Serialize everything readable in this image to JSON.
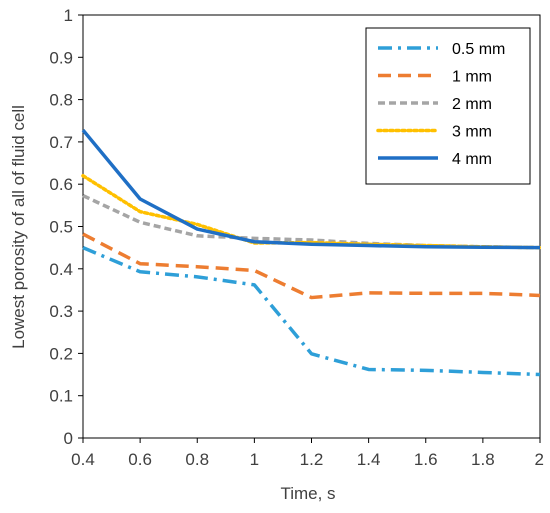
{
  "chart_data": {
    "type": "line",
    "title": "",
    "xlabel": "Time, s",
    "ylabel": "Lowest porosity of all of fluid cell",
    "xlim": [
      0.4,
      2
    ],
    "ylim": [
      0,
      1
    ],
    "xticks": [
      "0.4",
      "0.6",
      "0.8",
      "1",
      "1.2",
      "1.4",
      "1.6",
      "1.8",
      "2"
    ],
    "yticks": [
      "0",
      "0.1",
      "0.2",
      "0.3",
      "0.4",
      "0.5",
      "0.6",
      "0.7",
      "0.8",
      "0.9",
      "1"
    ],
    "grid": false,
    "legend_position": "top-right",
    "series": [
      {
        "name": "0.5 mm",
        "color": "#2E9FD8",
        "dash": "dash-dot",
        "x": [
          0.4,
          0.6,
          0.8,
          1.0,
          1.2,
          1.4,
          1.6,
          1.8,
          2.0
        ],
        "y": [
          0.45,
          0.393,
          0.381,
          0.362,
          0.199,
          0.162,
          0.16,
          0.155,
          0.15
        ]
      },
      {
        "name": "1 mm",
        "color": "#ED7D31",
        "dash": "dash",
        "x": [
          0.4,
          0.6,
          0.8,
          1.0,
          1.2,
          1.4,
          1.6,
          1.8,
          2.0
        ],
        "y": [
          0.482,
          0.412,
          0.405,
          0.396,
          0.332,
          0.343,
          0.342,
          0.342,
          0.337
        ]
      },
      {
        "name": "2 mm",
        "color": "#A5A5A5",
        "dash": "short-dash",
        "x": [
          0.4,
          0.6,
          0.8,
          1.0,
          1.2,
          1.4,
          1.6,
          1.8,
          2.0
        ],
        "y": [
          0.573,
          0.51,
          0.478,
          0.472,
          0.468,
          0.46,
          0.455,
          0.452,
          0.45
        ]
      },
      {
        "name": "3 mm",
        "color": "#FFC000",
        "dash": "dot",
        "x": [
          0.4,
          0.6,
          0.8,
          1.0,
          1.2,
          1.4,
          1.6,
          1.8,
          2.0
        ],
        "y": [
          0.62,
          0.535,
          0.505,
          0.461,
          0.462,
          0.458,
          0.455,
          0.452,
          0.45
        ]
      },
      {
        "name": "4 mm",
        "color": "#1F6FC5",
        "dash": "solid",
        "x": [
          0.4,
          0.6,
          0.8,
          1.0,
          1.2,
          1.4,
          1.6,
          1.8,
          2.0
        ],
        "y": [
          0.728,
          0.565,
          0.494,
          0.464,
          0.458,
          0.455,
          0.452,
          0.451,
          0.45
        ]
      }
    ]
  }
}
